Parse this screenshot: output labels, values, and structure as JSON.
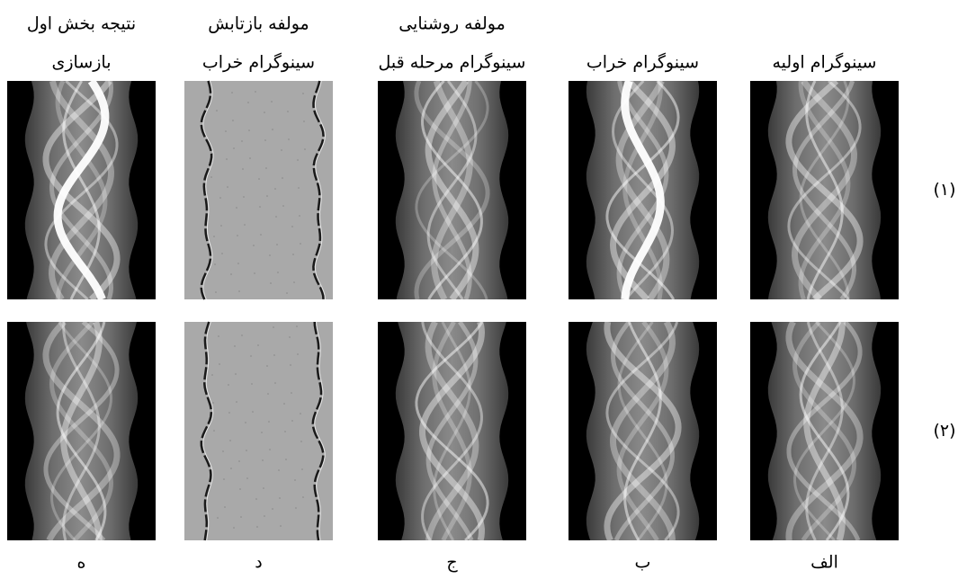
{
  "columns": [
    {
      "header": [
        "سینوگرام اولیه"
      ],
      "label": "الف"
    },
    {
      "header": [
        "سینوگرام خراب"
      ],
      "label": "ب"
    },
    {
      "header": [
        "مولفه روشنایی",
        "سینوگرام مرحله قبل"
      ],
      "label": "ج"
    },
    {
      "header": [
        "مولفه بازتابش",
        "سینوگرام خراب"
      ],
      "label": "د"
    },
    {
      "header": [
        "نتیجه بخش اول",
        "بازسازی"
      ],
      "label": "ه"
    }
  ],
  "rows": [
    "(۱)",
    "(۲)"
  ]
}
